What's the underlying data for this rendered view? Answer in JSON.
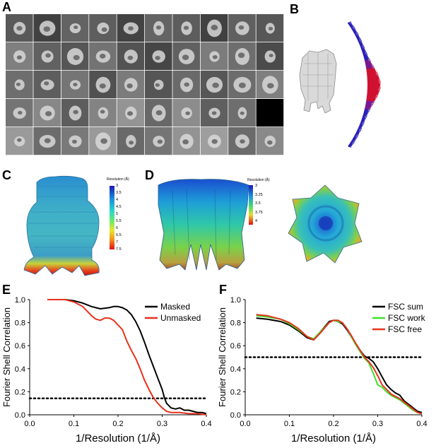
{
  "panels": {
    "A": {
      "letter": "A",
      "grid_rows": 5,
      "grid_cols": 10
    },
    "B": {
      "letter": "B"
    },
    "C": {
      "letter": "C",
      "colorbar": {
        "title": "Resolution (Å)",
        "ticks": [
          "3",
          "3.5",
          "4",
          "4.5",
          "5",
          "5.5",
          "6",
          "6.5",
          "7",
          "7.5"
        ]
      }
    },
    "D": {
      "letter": "D",
      "colorbar": {
        "title": "Resolution (Å)",
        "ticks": [
          "3",
          "3.25",
          "3.5",
          "3.75",
          "4"
        ]
      }
    },
    "E": {
      "letter": "E"
    },
    "F": {
      "letter": "F"
    }
  },
  "chart_data": [
    {
      "type": "line",
      "panel": "E",
      "title": "",
      "xlabel": "1/Resolution (1/Å)",
      "ylabel": "Fourier Shell Correlation",
      "xlim": [
        0.0,
        0.4
      ],
      "ylim": [
        0.0,
        1.0
      ],
      "xticks": [
        "0.0",
        "0.1",
        "0.2",
        "0.3",
        "0.4"
      ],
      "yticks": [
        "0.0",
        "0.2",
        "0.4",
        "0.6",
        "0.8",
        "1.0"
      ],
      "legend_position": "top-right",
      "threshold": 0.143,
      "series": [
        {
          "name": "Masked",
          "color": "#000000",
          "x": [
            0.04,
            0.06,
            0.08,
            0.1,
            0.12,
            0.14,
            0.16,
            0.18,
            0.19,
            0.2,
            0.21,
            0.22,
            0.23,
            0.24,
            0.25,
            0.26,
            0.27,
            0.28,
            0.29,
            0.3,
            0.305,
            0.31,
            0.32,
            0.33,
            0.34,
            0.35,
            0.36,
            0.37,
            0.38,
            0.39,
            0.4
          ],
          "y": [
            1.0,
            1.0,
            1.0,
            0.99,
            0.97,
            0.94,
            0.92,
            0.93,
            0.94,
            0.94,
            0.93,
            0.91,
            0.87,
            0.81,
            0.73,
            0.63,
            0.52,
            0.42,
            0.32,
            0.22,
            0.15,
            0.1,
            0.06,
            0.05,
            0.06,
            0.04,
            0.04,
            0.03,
            0.02,
            0.02,
            0.01
          ]
        },
        {
          "name": "Unmasked",
          "color": "#e8311d",
          "x": [
            0.04,
            0.06,
            0.08,
            0.1,
            0.12,
            0.13,
            0.14,
            0.15,
            0.16,
            0.17,
            0.18,
            0.19,
            0.2,
            0.21,
            0.22,
            0.23,
            0.24,
            0.25,
            0.26,
            0.27,
            0.28,
            0.29,
            0.3,
            0.31,
            0.32,
            0.33,
            0.34,
            0.36,
            0.38,
            0.4
          ],
          "y": [
            1.0,
            1.0,
            1.0,
            0.98,
            0.94,
            0.9,
            0.86,
            0.83,
            0.82,
            0.84,
            0.84,
            0.82,
            0.78,
            0.74,
            0.64,
            0.56,
            0.49,
            0.4,
            0.3,
            0.22,
            0.15,
            0.1,
            0.06,
            0.03,
            0.02,
            0.02,
            0.02,
            0.01,
            0.01,
            0.0
          ]
        }
      ]
    },
    {
      "type": "line",
      "panel": "F",
      "title": "",
      "xlabel": "1/Resolution (1/Å)",
      "ylabel": "Fourier Shell Correlation",
      "xlim": [
        0.0,
        0.4
      ],
      "ylim": [
        0.0,
        1.0
      ],
      "xticks": [
        "0.0",
        "0.1",
        "0.2",
        "0.3",
        "0.4"
      ],
      "yticks": [
        "0.0",
        "0.2",
        "0.4",
        "0.6",
        "0.8",
        "1.0"
      ],
      "legend_position": "top-right",
      "threshold": 0.5,
      "series": [
        {
          "name": "FSC sum",
          "color": "#000000",
          "x": [
            0.025,
            0.05,
            0.08,
            0.1,
            0.12,
            0.14,
            0.155,
            0.17,
            0.19,
            0.2,
            0.21,
            0.22,
            0.23,
            0.24,
            0.25,
            0.26,
            0.27,
            0.28,
            0.29,
            0.3,
            0.31,
            0.32,
            0.33,
            0.34,
            0.35,
            0.36,
            0.37,
            0.38,
            0.39,
            0.4
          ],
          "y": [
            0.84,
            0.83,
            0.81,
            0.78,
            0.73,
            0.67,
            0.65,
            0.72,
            0.81,
            0.82,
            0.81,
            0.79,
            0.74,
            0.68,
            0.62,
            0.56,
            0.51,
            0.49,
            0.46,
            0.4,
            0.33,
            0.26,
            0.22,
            0.19,
            0.17,
            0.12,
            0.09,
            0.06,
            0.03,
            0.02
          ]
        },
        {
          "name": "FSC work",
          "color": "#3fe02c",
          "x": [
            0.025,
            0.05,
            0.08,
            0.1,
            0.12,
            0.14,
            0.155,
            0.17,
            0.19,
            0.2,
            0.21,
            0.22,
            0.23,
            0.24,
            0.25,
            0.26,
            0.27,
            0.28,
            0.29,
            0.3,
            0.31,
            0.32,
            0.33,
            0.34,
            0.35,
            0.36,
            0.37,
            0.38,
            0.39,
            0.4
          ],
          "y": [
            0.86,
            0.85,
            0.83,
            0.79,
            0.74,
            0.68,
            0.66,
            0.72,
            0.8,
            0.82,
            0.81,
            0.8,
            0.75,
            0.68,
            0.61,
            0.55,
            0.49,
            0.45,
            0.36,
            0.26,
            0.24,
            0.2,
            0.17,
            0.15,
            0.13,
            0.1,
            0.07,
            0.04,
            0.02,
            0.01
          ]
        },
        {
          "name": "FSC free",
          "color": "#e8311d",
          "x": [
            0.025,
            0.05,
            0.08,
            0.1,
            0.12,
            0.14,
            0.155,
            0.17,
            0.19,
            0.2,
            0.21,
            0.22,
            0.23,
            0.24,
            0.25,
            0.26,
            0.27,
            0.28,
            0.29,
            0.3,
            0.31,
            0.32,
            0.33,
            0.34,
            0.35,
            0.36,
            0.37,
            0.38,
            0.39,
            0.4
          ],
          "y": [
            0.87,
            0.86,
            0.83,
            0.8,
            0.75,
            0.68,
            0.65,
            0.71,
            0.8,
            0.82,
            0.82,
            0.8,
            0.75,
            0.69,
            0.62,
            0.56,
            0.5,
            0.46,
            0.41,
            0.34,
            0.26,
            0.22,
            0.18,
            0.16,
            0.14,
            0.11,
            0.08,
            0.05,
            0.02,
            0.01
          ]
        }
      ]
    }
  ]
}
